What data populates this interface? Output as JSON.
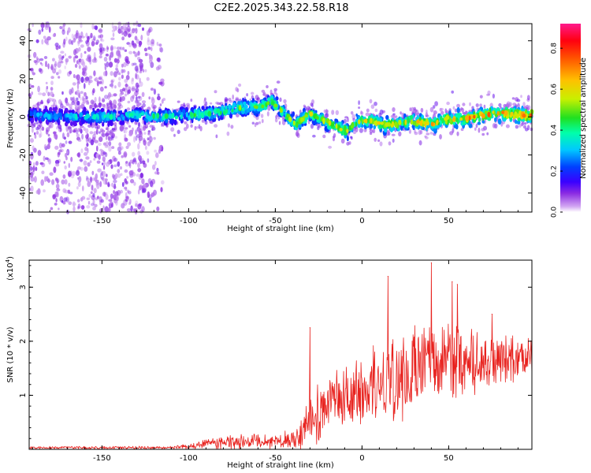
{
  "figure_title": "C2E2.2025.343.22.58.R18",
  "colors": {
    "snr_line": "#e8221e",
    "axis": "#000000",
    "background": "#ffffff"
  },
  "chart_data": [
    {
      "type": "heatmap",
      "name": "spectrogram",
      "title": "C2E2.2025.343.22.58.R18",
      "xlabel": "Height of straight line (km)",
      "ylabel": "Frequency (Hz)",
      "xlim": [
        -192,
        98
      ],
      "ylim": [
        -50,
        49
      ],
      "xticks": [
        -150,
        -100,
        -50,
        0,
        50
      ],
      "yticks": [
        -40,
        -20,
        0,
        20,
        40
      ],
      "ridge": [
        {
          "x": -192,
          "y": 1
        },
        {
          "x": -170,
          "y": 0
        },
        {
          "x": -150,
          "y": 0
        },
        {
          "x": -130,
          "y": 1
        },
        {
          "x": -115,
          "y": 0
        },
        {
          "x": -100,
          "y": 1
        },
        {
          "x": -85,
          "y": 2
        },
        {
          "x": -70,
          "y": 5
        },
        {
          "x": -60,
          "y": 5
        },
        {
          "x": -52,
          "y": 8
        },
        {
          "x": -45,
          "y": 2
        },
        {
          "x": -38,
          "y": -4
        },
        {
          "x": -30,
          "y": 2
        },
        {
          "x": -22,
          "y": -2
        },
        {
          "x": -15,
          "y": -5
        },
        {
          "x": -8,
          "y": -8
        },
        {
          "x": -3,
          "y": -2
        },
        {
          "x": 5,
          "y": -2
        },
        {
          "x": 12,
          "y": -4
        },
        {
          "x": 20,
          "y": -4
        },
        {
          "x": 30,
          "y": -2
        },
        {
          "x": 40,
          "y": -4
        },
        {
          "x": 50,
          "y": -1
        },
        {
          "x": 60,
          "y": -1
        },
        {
          "x": 70,
          "y": 1
        },
        {
          "x": 80,
          "y": 2
        },
        {
          "x": 90,
          "y": 1
        },
        {
          "x": 98,
          "y": 1
        }
      ],
      "noisy_region_x": [
        -192,
        -115
      ],
      "colorbar": {
        "label": "Normalized spectral amplitude",
        "range": [
          0,
          0.92
        ],
        "ticks": [
          "0.0",
          "0.2",
          "0.4",
          "0.6",
          "0.8"
        ],
        "tick_values": [
          0,
          0.2,
          0.4,
          0.6,
          0.8
        ]
      }
    },
    {
      "type": "line",
      "name": "snr",
      "xlabel": "Height of straight line (km)",
      "ylabel": "SNR (10 * v/v)",
      "scale_label": "(x10",
      "scale_exponent": "4",
      "xlim": [
        -192,
        98
      ],
      "ylim": [
        0,
        3.5
      ],
      "xticks": [
        -150,
        -100,
        -50,
        0,
        50
      ],
      "yticks": [
        1,
        2,
        3
      ],
      "envelope": [
        {
          "x": -192,
          "mean": 0.03,
          "amp": 0.04
        },
        {
          "x": -110,
          "mean": 0.03,
          "amp": 0.05
        },
        {
          "x": -100,
          "mean": 0.06,
          "amp": 0.08
        },
        {
          "x": -85,
          "mean": 0.12,
          "amp": 0.22
        },
        {
          "x": -70,
          "mean": 0.15,
          "amp": 0.25
        },
        {
          "x": -55,
          "mean": 0.14,
          "amp": 0.22
        },
        {
          "x": -40,
          "mean": 0.18,
          "amp": 0.3
        },
        {
          "x": -30,
          "mean": 0.5,
          "amp": 0.9
        },
        {
          "x": -20,
          "mean": 0.75,
          "amp": 0.9
        },
        {
          "x": -10,
          "mean": 0.95,
          "amp": 1.0
        },
        {
          "x": 0,
          "mean": 1.1,
          "amp": 1.1
        },
        {
          "x": 15,
          "mean": 1.3,
          "amp": 1.4
        },
        {
          "x": 30,
          "mean": 1.45,
          "amp": 1.4
        },
        {
          "x": 45,
          "mean": 1.6,
          "amp": 1.3
        },
        {
          "x": 60,
          "mean": 1.6,
          "amp": 1.1
        },
        {
          "x": 80,
          "mean": 1.65,
          "amp": 0.8
        },
        {
          "x": 98,
          "mean": 1.7,
          "amp": 0.6
        }
      ],
      "peaks": [
        {
          "x": -30,
          "y": 2.25
        },
        {
          "x": 15,
          "y": 3.2
        },
        {
          "x": 40,
          "y": 3.45
        },
        {
          "x": 52,
          "y": 3.1
        },
        {
          "x": 55,
          "y": 3.05
        },
        {
          "x": 75,
          "y": 2.5
        }
      ]
    }
  ]
}
